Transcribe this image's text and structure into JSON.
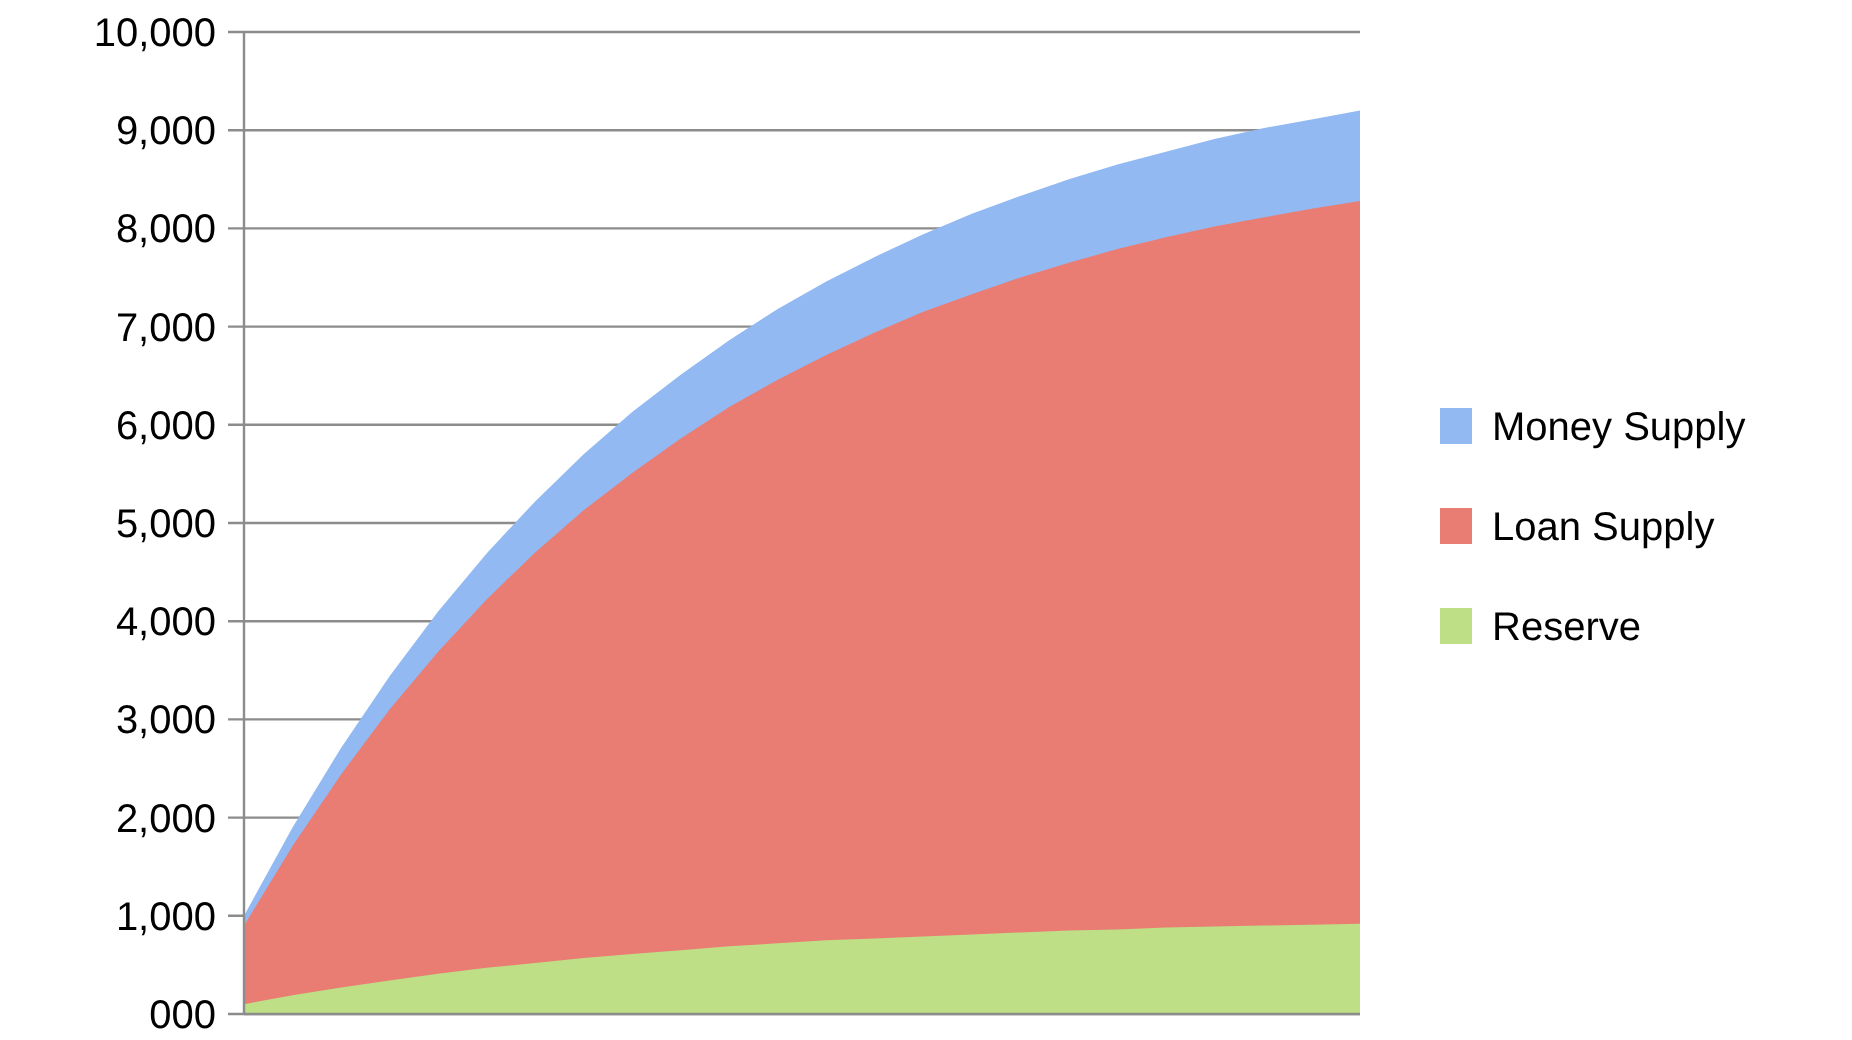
{
  "chart_data": {
    "type": "area",
    "categories": [
      null,
      null,
      null,
      null,
      null,
      null,
      null,
      null,
      null,
      null,
      null,
      null,
      null,
      null,
      null,
      null,
      null,
      null,
      null,
      null,
      null,
      null,
      null,
      null
    ],
    "series": [
      {
        "name": "Money Supply",
        "color": "#92b9f2",
        "values": [
          1000,
          1900,
          2710,
          3440,
          4100,
          4690,
          5220,
          5700,
          6130,
          6510,
          6860,
          7180,
          7460,
          7710,
          7940,
          8150,
          8330,
          8500,
          8650,
          8780,
          8910,
          9020,
          9110,
          9200
        ]
      },
      {
        "name": "Loan Supply",
        "color": "#e97d74",
        "values": [
          900,
          1710,
          2440,
          3100,
          3690,
          4220,
          4700,
          5130,
          5510,
          5860,
          6180,
          6460,
          6710,
          6940,
          7150,
          7330,
          7500,
          7650,
          7790,
          7910,
          8020,
          8110,
          8200,
          8280
        ]
      },
      {
        "name": "Reserve",
        "color": "#bedf85",
        "values": [
          100,
          190,
          270,
          340,
          410,
          470,
          520,
          570,
          610,
          650,
          690,
          720,
          750,
          770,
          790,
          810,
          830,
          850,
          860,
          880,
          890,
          900,
          910,
          920
        ]
      }
    ],
    "ylim": [
      0,
      10000
    ],
    "yticks": [
      {
        "value": 0,
        "label": "000"
      },
      {
        "value": 1000,
        "label": "1,000"
      },
      {
        "value": 2000,
        "label": "2,000"
      },
      {
        "value": 3000,
        "label": "3,000"
      },
      {
        "value": 4000,
        "label": "4,000"
      },
      {
        "value": 5000,
        "label": "5,000"
      },
      {
        "value": 6000,
        "label": "6,000"
      },
      {
        "value": 7000,
        "label": "7,000"
      },
      {
        "value": 8000,
        "label": "8,000"
      },
      {
        "value": 9000,
        "label": "9,000"
      },
      {
        "value": 10000,
        "label": "10,000"
      }
    ],
    "grid": "y",
    "legend": "right"
  }
}
